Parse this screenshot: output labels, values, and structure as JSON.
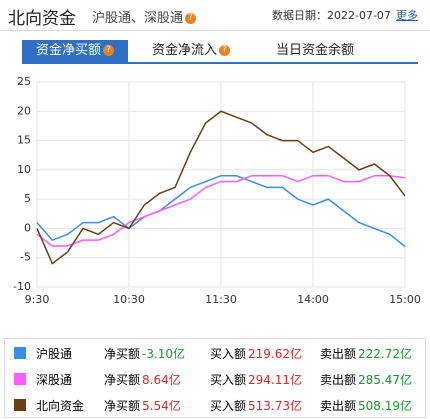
{
  "header": {
    "title": "北向资金",
    "subtitle": "沪股通、深股通",
    "date_label": "数据日期：2022-07-07",
    "more": "更多"
  },
  "tabs": [
    "资金净买额",
    "资金净流入",
    "当日资金余额"
  ],
  "chart_data": {
    "type": "line",
    "x": [
      0,
      10,
      20,
      30,
      40,
      50,
      60,
      70,
      80,
      90,
      100,
      110,
      120,
      130,
      140,
      150,
      160,
      170,
      180,
      190,
      200,
      210,
      220,
      230,
      240
    ],
    "xlim": [
      0,
      240
    ],
    "xticks": [
      {
        "value": 0,
        "label": "9:30"
      },
      {
        "value": 60,
        "label": "10:30"
      },
      {
        "value": 120,
        "label": "11:30"
      },
      {
        "value": 180,
        "label": "14:00"
      },
      {
        "value": 240,
        "label": "15:00"
      }
    ],
    "ylim": [
      -10,
      25
    ],
    "yticks": [
      25,
      20,
      15,
      10,
      5,
      0,
      -5,
      -10
    ],
    "grid": true,
    "series": [
      {
        "name": "沪股通",
        "color": "#3a8ee6",
        "values": [
          1,
          -2,
          -1,
          1,
          1,
          2,
          0,
          2,
          3,
          5,
          7,
          8,
          9,
          9,
          8,
          7,
          7,
          5,
          4,
          5,
          3,
          1,
          0,
          -1,
          -3.1
        ]
      },
      {
        "name": "深股通",
        "color": "#ff5cff",
        "values": [
          -1,
          -3,
          -3,
          -2,
          -2,
          -1,
          1,
          2,
          3,
          4,
          5,
          7,
          8,
          8,
          9,
          9,
          9,
          8,
          9,
          9,
          8,
          8,
          9,
          9,
          8.64
        ]
      },
      {
        "name": "北向资金",
        "color": "#6b3f12",
        "values": [
          0,
          -6,
          -4,
          0,
          -1,
          1,
          0,
          4,
          6,
          7,
          13,
          18,
          20,
          19,
          18,
          16,
          15,
          15,
          13,
          14,
          12,
          10,
          11,
          9,
          5.54
        ]
      }
    ]
  },
  "table": {
    "rows": [
      {
        "net_label": "净买额",
        "net": "-3.10亿",
        "buy_label": "买入额",
        "buy": "219.62亿",
        "sell_label": "卖出额",
        "sell": "222.72亿"
      },
      {
        "net_label": "净买额",
        "net": "8.64亿",
        "buy_label": "买入额",
        "buy": "294.11亿",
        "sell_label": "卖出额",
        "sell": "285.47亿"
      },
      {
        "net_label": "净买额",
        "net": "5.54亿",
        "buy_label": "买入额",
        "buy": "513.73亿",
        "sell_label": "卖出额",
        "sell": "508.19亿"
      }
    ]
  }
}
